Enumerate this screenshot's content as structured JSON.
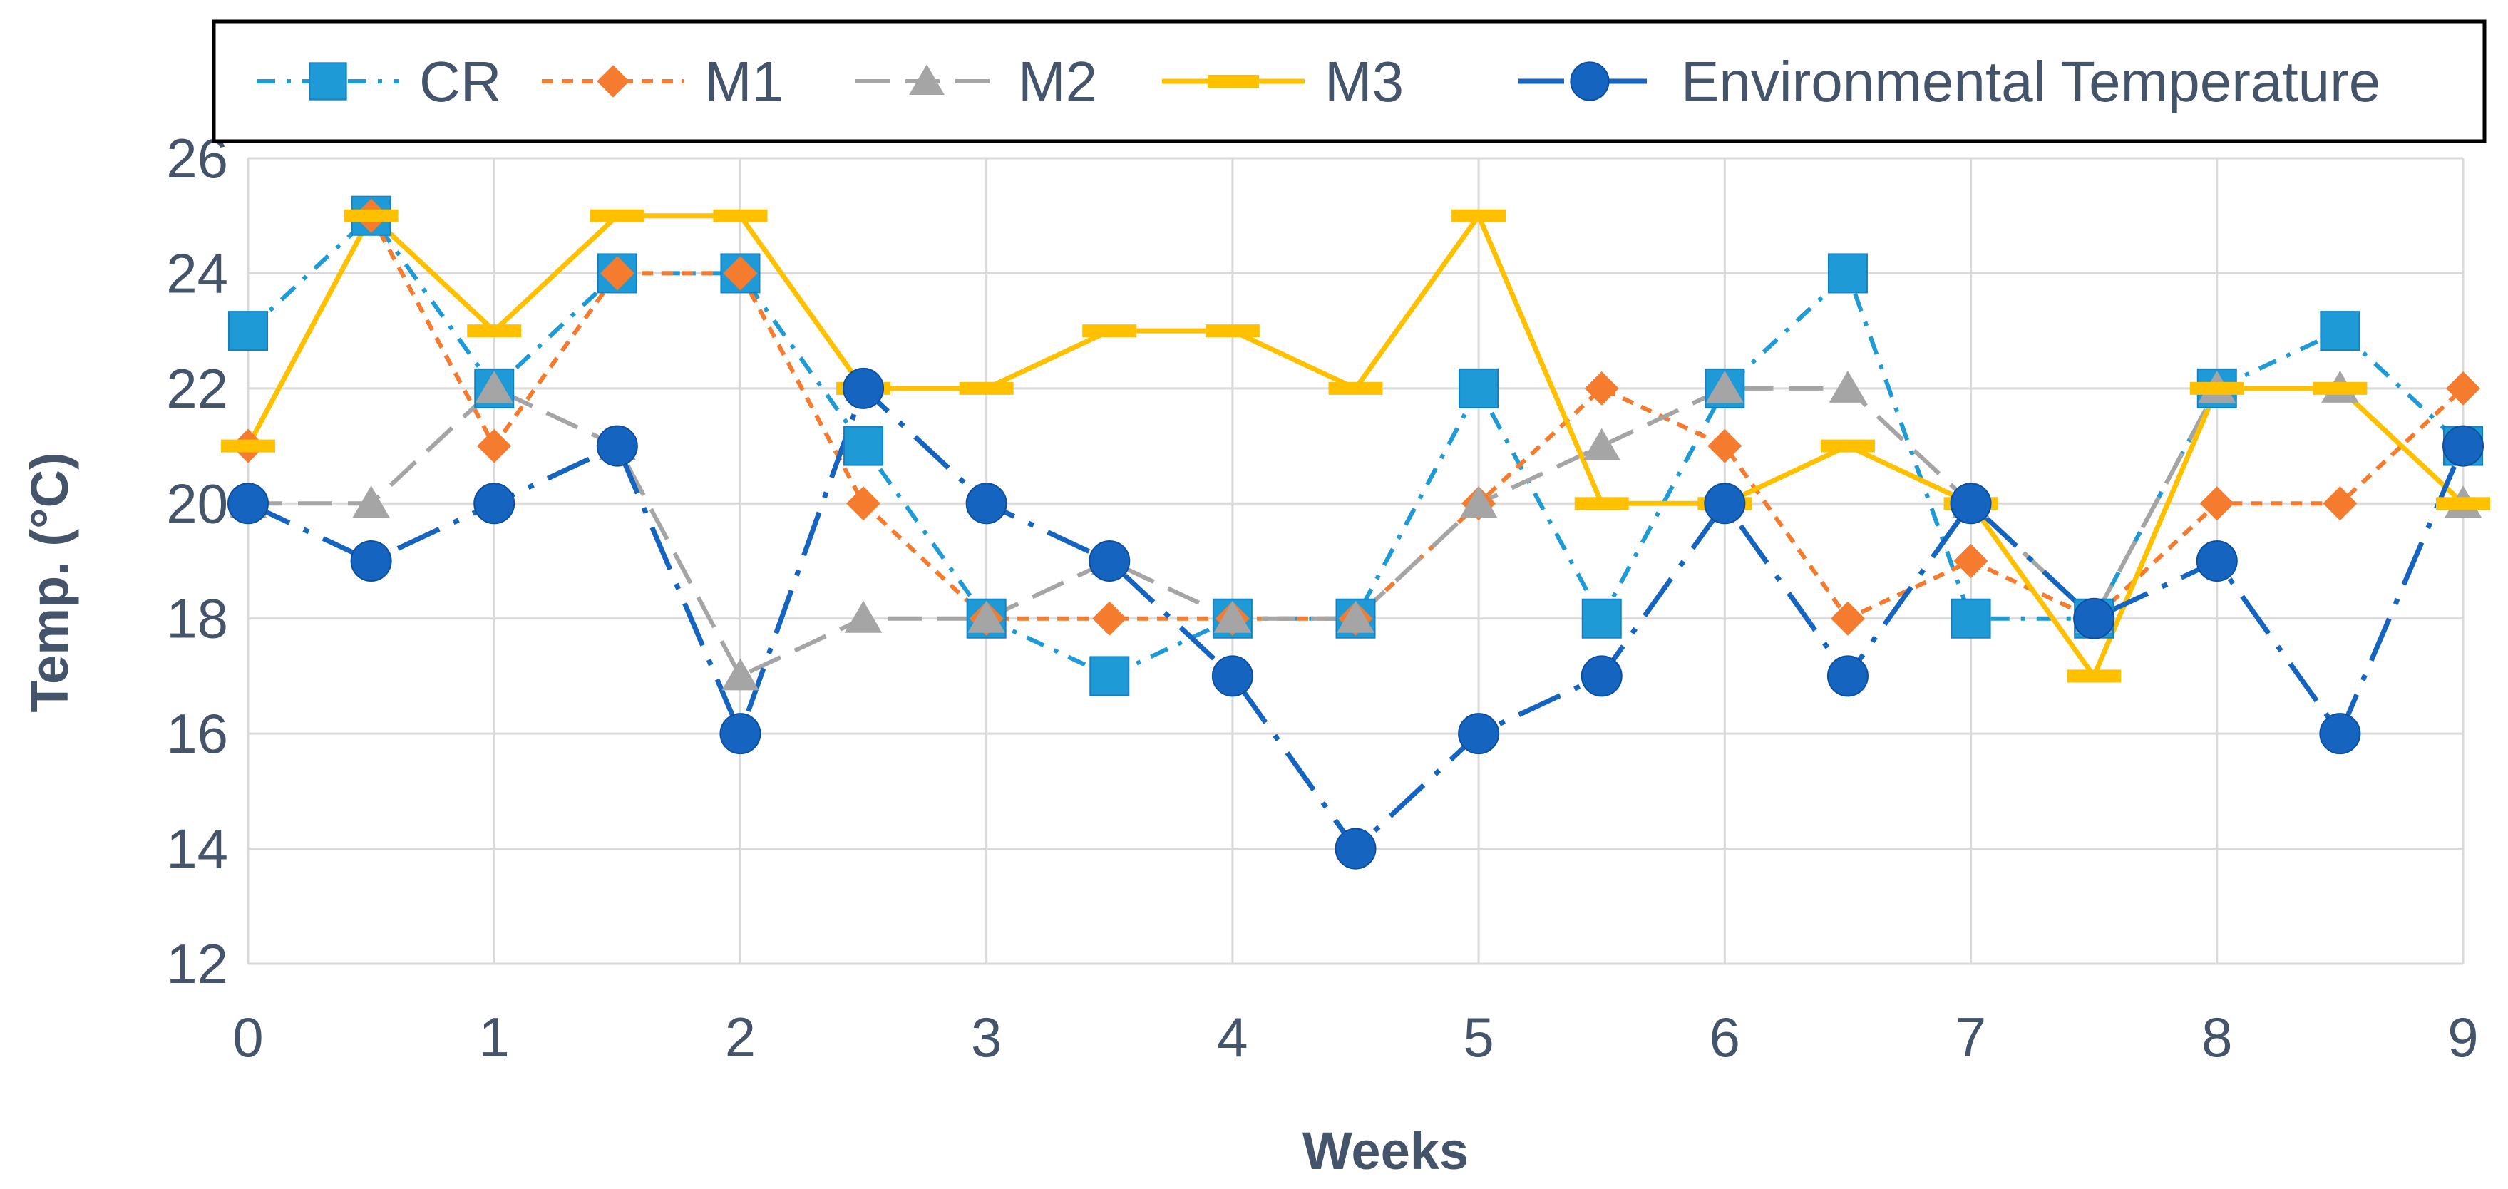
{
  "chart_data": {
    "type": "line",
    "title": "",
    "xlabel": "Weeks",
    "ylabel": "Temp. (°C)",
    "x": [
      0,
      0.5,
      1,
      1.5,
      2,
      2.5,
      3,
      3.5,
      4,
      4.5,
      5,
      5.5,
      6,
      6.5,
      7,
      7.5,
      8,
      8.5,
      9
    ],
    "xlim": [
      0,
      9
    ],
    "ylim": [
      12,
      26
    ],
    "x_ticks": [
      "0",
      "1",
      "2",
      "3",
      "4",
      "5",
      "6",
      "7",
      "8",
      "9"
    ],
    "y_ticks": [
      "12",
      "14",
      "16",
      "18",
      "20",
      "22",
      "24",
      "26"
    ],
    "grid": true,
    "legend_position": "top",
    "series": [
      {
        "name": "CR",
        "color": "#1e9bd7",
        "line_style": "dash-dot",
        "marker": "square",
        "values": [
          23,
          25,
          22,
          24,
          24,
          21,
          18,
          17,
          18,
          18,
          22,
          18,
          22,
          24,
          18,
          18,
          22,
          23,
          21
        ]
      },
      {
        "name": "M1",
        "color": "#f57c2e",
        "line_style": "short-dash",
        "marker": "diamond",
        "values": [
          21,
          25,
          21,
          24,
          24,
          20,
          18,
          18,
          18,
          18,
          20,
          22,
          21,
          18,
          19,
          18,
          20,
          20,
          22
        ]
      },
      {
        "name": "M2",
        "color": "#a5a5a5",
        "line_style": "long-dash",
        "marker": "triangle",
        "values": [
          20,
          20,
          22,
          21,
          17,
          18,
          18,
          19,
          18,
          18,
          20,
          21,
          22,
          22,
          20,
          18,
          22,
          22,
          20
        ]
      },
      {
        "name": "M3",
        "color": "#ffc000",
        "line_style": "solid",
        "marker": "dash",
        "values": [
          21,
          25,
          23,
          25,
          25,
          22,
          22,
          23,
          23,
          22,
          25,
          20,
          20,
          21,
          20,
          17,
          22,
          22,
          20
        ]
      },
      {
        "name": "Environmental Temperature",
        "color": "#1565c0",
        "line_style": "long-dash-dot",
        "marker": "circle",
        "values": [
          20,
          19,
          20,
          21,
          16,
          22,
          20,
          19,
          17,
          14,
          16,
          17,
          20,
          17,
          20,
          18,
          19,
          16,
          21
        ]
      }
    ]
  }
}
